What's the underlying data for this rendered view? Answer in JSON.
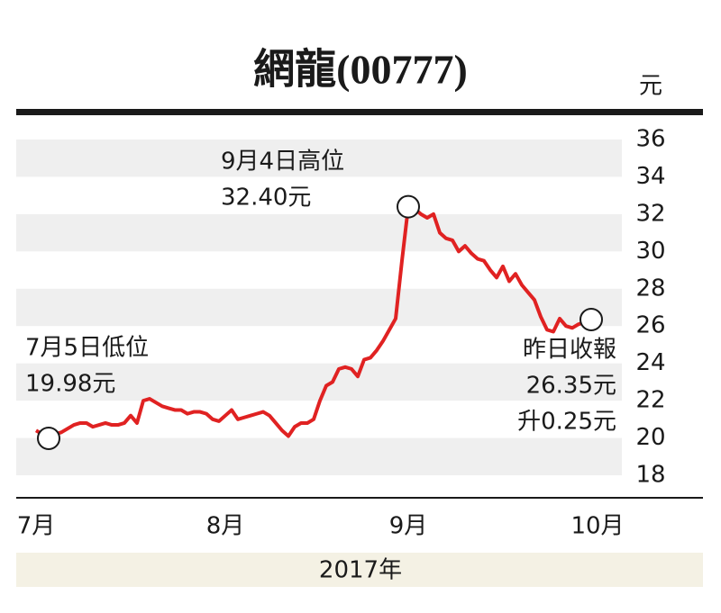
{
  "chart_data": {
    "type": "line",
    "title": "網龍(00777)",
    "y_unit": "元",
    "x_caption": "2017年",
    "categories": [
      "7月",
      null,
      null,
      null,
      null,
      null,
      null,
      null,
      null,
      null,
      null,
      null,
      null,
      null,
      null,
      null,
      null,
      null,
      null,
      null,
      null,
      null,
      null,
      null,
      null,
      null,
      null,
      null,
      null,
      null,
      "8月",
      null,
      null,
      null,
      null,
      null,
      null,
      null,
      null,
      null,
      null,
      null,
      null,
      null,
      null,
      null,
      null,
      null,
      null,
      null,
      null,
      null,
      null,
      null,
      null,
      null,
      null,
      null,
      null,
      "9月",
      null,
      null,
      null,
      null,
      null,
      null,
      null,
      null,
      null,
      null,
      null,
      null,
      null,
      null,
      null,
      null,
      null,
      null,
      null,
      null,
      null,
      null,
      null,
      null,
      null,
      null,
      null,
      null,
      null,
      "10月"
    ],
    "series": [
      {
        "name": "網龍",
        "color": "#e02222",
        "values": [
          20.4,
          20.2,
          19.98,
          20.2,
          20.3,
          20.5,
          20.7,
          20.8,
          20.8,
          20.6,
          20.7,
          20.8,
          20.7,
          20.7,
          20.8,
          21.2,
          20.8,
          22.0,
          22.1,
          21.9,
          21.7,
          21.6,
          21.5,
          21.5,
          21.3,
          21.4,
          21.4,
          21.3,
          21.0,
          20.9,
          21.2,
          21.5,
          21.0,
          21.1,
          21.2,
          21.3,
          21.4,
          21.2,
          20.8,
          20.4,
          20.1,
          20.6,
          20.8,
          20.8,
          21.0,
          22.0,
          22.8,
          23.0,
          23.7,
          23.8,
          23.7,
          23.3,
          24.2,
          24.3,
          24.7,
          25.2,
          25.8,
          26.4,
          29.5,
          32.4,
          32.3,
          32.0,
          31.8,
          32.0,
          31.0,
          30.7,
          30.6,
          30.0,
          30.3,
          29.9,
          29.6,
          29.5,
          29.0,
          28.6,
          29.2,
          28.4,
          28.8,
          28.2,
          27.8,
          27.4,
          26.5,
          25.8,
          25.7,
          26.4,
          26.0,
          25.9,
          26.1,
          26.2,
          26.35,
          null
        ]
      }
    ],
    "ylim": [
      18,
      36
    ],
    "yticks": [
      18,
      20,
      22,
      24,
      26,
      28,
      30,
      32,
      34,
      36
    ],
    "grid": "bands",
    "annotations": [
      {
        "lines": [
          "7月5日低位",
          "19.98元"
        ],
        "anchor": "start"
      },
      {
        "lines": [
          "9月4日高位",
          "32.40元"
        ],
        "anchor": "start"
      },
      {
        "lines": [
          "昨日收報",
          "26.35元",
          "升0.25元"
        ],
        "anchor": "end"
      }
    ]
  }
}
